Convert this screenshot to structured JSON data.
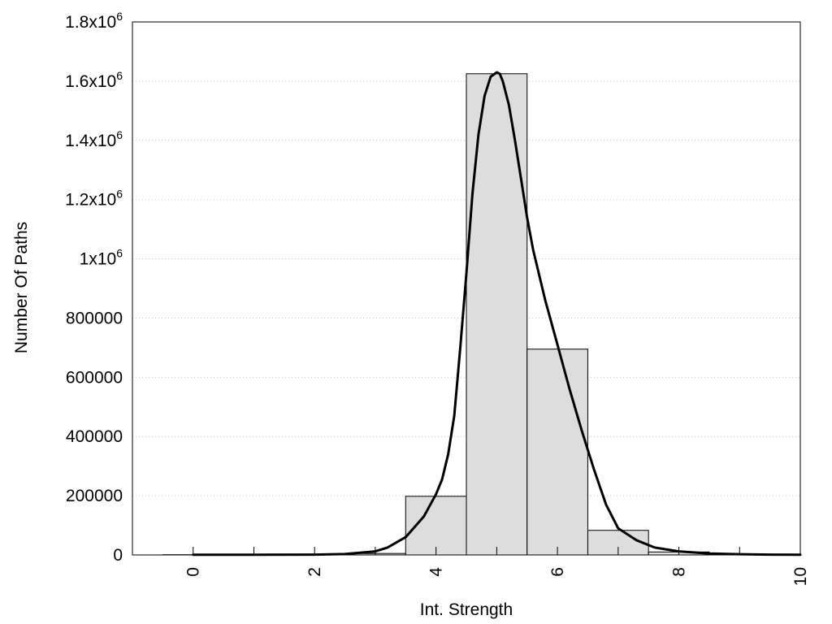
{
  "chart_data": {
    "type": "bar",
    "title": "",
    "xlabel": "Int. Strength",
    "ylabel": "Number Of Paths",
    "xlim": [
      -1,
      10
    ],
    "ylim": [
      0,
      1800000
    ],
    "grid": true,
    "x_ticks": [
      {
        "value": 0,
        "label": "0"
      },
      {
        "value": 2,
        "label": "2"
      },
      {
        "value": 4,
        "label": "4"
      },
      {
        "value": 6,
        "label": "6"
      },
      {
        "value": 8,
        "label": "8"
      },
      {
        "value": 10,
        "label": "10"
      }
    ],
    "y_ticks": [
      {
        "value": 0,
        "label": "0"
      },
      {
        "value": 200000,
        "label": "200000"
      },
      {
        "value": 400000,
        "label": "400000"
      },
      {
        "value": 600000,
        "label": "600000"
      },
      {
        "value": 800000,
        "label": "800000"
      },
      {
        "value": 1000000,
        "base": "1x10",
        "exp": "6"
      },
      {
        "value": 1200000,
        "base": "1.2x10",
        "exp": "6"
      },
      {
        "value": 1400000,
        "base": "1.4x10",
        "exp": "6"
      },
      {
        "value": 1600000,
        "base": "1.6x10",
        "exp": "6"
      },
      {
        "value": 1800000,
        "base": "1.8x10",
        "exp": "6"
      }
    ],
    "bars": {
      "x": [
        0,
        1,
        2,
        3,
        4,
        5,
        6,
        7,
        8,
        9,
        10
      ],
      "values": [
        800,
        600,
        1000,
        5000,
        198000,
        1625000,
        695000,
        83000,
        10000,
        2000,
        500
      ],
      "width": 1,
      "fill": "#dddddd",
      "stroke": "#000000"
    },
    "series": [
      {
        "type": "line",
        "x": [
          0,
          1,
          2,
          2.5,
          3,
          3.2,
          3.5,
          3.8,
          4,
          4.1,
          4.2,
          4.3,
          4.4,
          4.5,
          4.6,
          4.7,
          4.8,
          4.9,
          5,
          5.05,
          5.1,
          5.2,
          5.3,
          5.4,
          5.5,
          5.6,
          5.8,
          6,
          6.2,
          6.4,
          6.6,
          6.8,
          7,
          7.3,
          7.6,
          8,
          8.5,
          9,
          9.5,
          10
        ],
        "y": [
          500,
          500,
          1000,
          3000,
          12000,
          25000,
          60000,
          130000,
          205000,
          255000,
          340000,
          470000,
          700000,
          950000,
          1220000,
          1420000,
          1550000,
          1615000,
          1630000,
          1625000,
          1600000,
          1520000,
          1400000,
          1270000,
          1140000,
          1030000,
          860000,
          710000,
          560000,
          420000,
          290000,
          170000,
          90000,
          50000,
          25000,
          12000,
          5000,
          2500,
          1000,
          500
        ],
        "color": "#000000"
      }
    ]
  }
}
